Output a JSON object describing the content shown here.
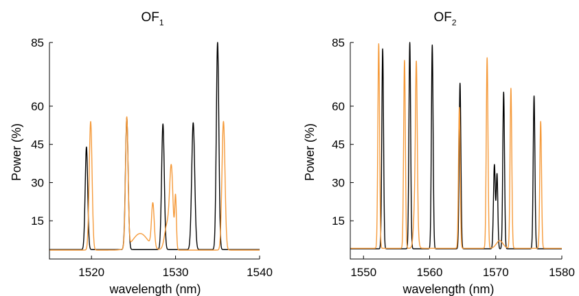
{
  "chart_data": [
    {
      "type": "line",
      "title": "OF",
      "title_sub": "1",
      "xlabel": "wavelength (nm)",
      "ylabel": "Power (%)",
      "xlim": [
        1515,
        1540
      ],
      "ylim": [
        0,
        85
      ],
      "xticks": [
        1520,
        1530,
        1540
      ],
      "yticks": [
        15,
        30,
        45,
        60,
        85
      ],
      "grid": false,
      "colors": {
        "black": "#000000",
        "orange": "#f59a3a"
      },
      "series": [
        {
          "color": "#000000",
          "baseline": 3.7,
          "peaks": [
            {
              "x": 1519.4,
              "y": 44,
              "w": 0.15
            },
            {
              "x": 1524.2,
              "y": 55.5,
              "w": 0.16
            },
            {
              "x": 1528.5,
              "y": 53,
              "w": 0.16
            },
            {
              "x": 1532.1,
              "y": 53.5,
              "w": 0.18
            },
            {
              "x": 1535.0,
              "y": 85,
              "w": 0.15
            }
          ]
        },
        {
          "color": "#f59a3a",
          "baseline": 3.5,
          "peaks": [
            {
              "x": 1519.9,
              "y": 54,
              "w": 0.17
            },
            {
              "x": 1524.2,
              "y": 54.5,
              "w": 0.15
            },
            {
              "x": 1527.3,
              "y": 20.5,
              "w": 0.16
            },
            {
              "x": 1529.5,
              "y": 34.5,
              "w": 0.2
            },
            {
              "x": 1530.0,
              "y": 24,
              "w": 0.1
            },
            {
              "x": 1535.7,
              "y": 54,
              "w": 0.18
            }
          ],
          "bumps": [
            {
              "x": 1525.8,
              "y": 6.5,
              "w": 0.9
            },
            {
              "x": 1529.0,
              "y": 10,
              "w": 0.3
            }
          ]
        }
      ]
    },
    {
      "type": "line",
      "title": "OF",
      "title_sub": "2",
      "xlabel": "wavelength (nm)",
      "ylabel": "Power (%)",
      "xlim": [
        1548,
        1580
      ],
      "ylim": [
        0,
        85
      ],
      "xticks": [
        1550,
        1560,
        1570,
        1580
      ],
      "yticks": [
        15,
        30,
        45,
        60,
        85
      ],
      "grid": false,
      "colors": {
        "black": "#000000",
        "orange": "#f59a3a"
      },
      "series": [
        {
          "color": "#000000",
          "baseline": 4.0,
          "peaks": [
            {
              "x": 1552.9,
              "y": 82.5,
              "w": 0.13
            },
            {
              "x": 1557.0,
              "y": 85,
              "w": 0.13
            },
            {
              "x": 1560.4,
              "y": 84,
              "w": 0.13
            },
            {
              "x": 1564.6,
              "y": 69,
              "w": 0.13
            },
            {
              "x": 1569.8,
              "y": 37,
              "w": 0.14
            },
            {
              "x": 1570.2,
              "y": 33,
              "w": 0.12
            },
            {
              "x": 1571.2,
              "y": 65.5,
              "w": 0.13
            },
            {
              "x": 1575.8,
              "y": 64,
              "w": 0.13
            }
          ]
        },
        {
          "color": "#f59a3a",
          "baseline": 4.2,
          "peaks": [
            {
              "x": 1552.3,
              "y": 84.5,
              "w": 0.13
            },
            {
              "x": 1556.2,
              "y": 78,
              "w": 0.13
            },
            {
              "x": 1558.0,
              "y": 55.5,
              "w": 0.13
            },
            {
              "x": 1564.5,
              "y": 59.5,
              "w": 0.13
            },
            {
              "x": 1568.7,
              "y": 79,
              "w": 0.13
            },
            {
              "x": 1572.3,
              "y": 67,
              "w": 0.13
            },
            {
              "x": 1576.8,
              "y": 54,
              "w": 0.13
            }
          ],
          "bumps": [
            {
              "x": 1557.9,
              "y": 24,
              "w": 0.25
            },
            {
              "x": 1570.6,
              "y": 3,
              "w": 0.5
            }
          ]
        }
      ]
    }
  ]
}
